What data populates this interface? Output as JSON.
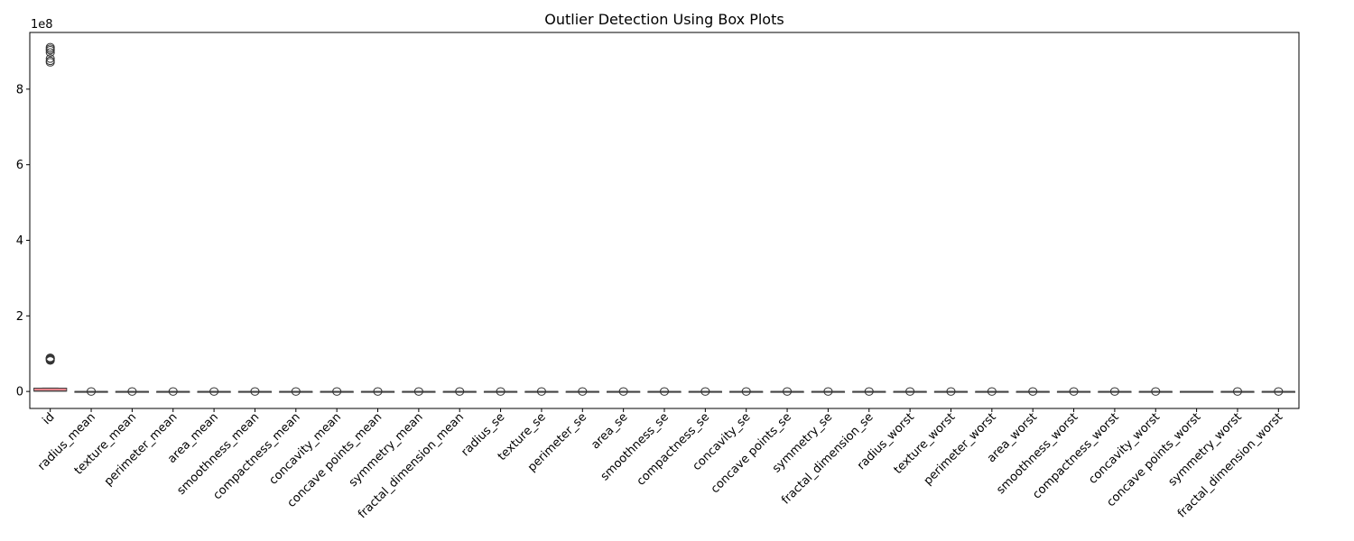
{
  "chart_data": {
    "type": "box",
    "title": "Outlier Detection Using Box Plots",
    "ylabel": "",
    "xlabel": "",
    "y_scale_multiplier": "1e8",
    "ylim": [
      -0.45,
      9.5
    ],
    "yticks": [
      0,
      2,
      4,
      6,
      8
    ],
    "grid": false,
    "box_color": "#e7848b",
    "categories": [
      "id",
      "radius_mean",
      "texture_mean",
      "perimeter_mean",
      "area_mean",
      "smoothness_mean",
      "compactness_mean",
      "concavity_mean",
      "concave points_mean",
      "symmetry_mean",
      "fractal_dimension_mean",
      "radius_se",
      "texture_se",
      "perimeter_se",
      "area_se",
      "smoothness_se",
      "compactness_se",
      "concavity_se",
      "concave points_se",
      "symmetry_se",
      "fractal_dimension_se",
      "radius_worst",
      "texture_worst",
      "perimeter_worst",
      "area_worst",
      "smoothness_worst",
      "compactness_worst",
      "concavity_worst",
      "concave points_worst",
      "symmetry_worst",
      "fractal_dimension_worst"
    ],
    "boxes": [
      {
        "name": "id",
        "q1": 0.0087,
        "median": 0.009,
        "q3": 0.088,
        "whisker_low": 0.0087,
        "whisker_high": 0.09,
        "outliers": [
          0.82,
          0.84,
          0.86,
          0.87,
          0.88,
          0.89,
          8.71,
          8.75,
          8.81,
          8.97,
          9.03,
          9.07,
          9.11
        ]
      },
      {
        "name": "radius_mean",
        "q1": 0,
        "median": 0,
        "q3": 0,
        "whisker_low": 0,
        "whisker_high": 0,
        "outliers": [
          0.0
        ]
      },
      {
        "name": "texture_mean",
        "q1": 0,
        "median": 0,
        "q3": 0,
        "whisker_low": 0,
        "whisker_high": 0,
        "outliers": [
          0.0
        ]
      },
      {
        "name": "perimeter_mean",
        "q1": 0,
        "median": 0,
        "q3": 0,
        "whisker_low": 0,
        "whisker_high": 0,
        "outliers": [
          0.0
        ]
      },
      {
        "name": "area_mean",
        "q1": 0,
        "median": 0,
        "q3": 0,
        "whisker_low": 0,
        "whisker_high": 0,
        "outliers": [
          0.0
        ]
      },
      {
        "name": "smoothness_mean",
        "q1": 0,
        "median": 0,
        "q3": 0,
        "whisker_low": 0,
        "whisker_high": 0,
        "outliers": [
          0.0
        ]
      },
      {
        "name": "compactness_mean",
        "q1": 0,
        "median": 0,
        "q3": 0,
        "whisker_low": 0,
        "whisker_high": 0,
        "outliers": [
          0.0
        ]
      },
      {
        "name": "concavity_mean",
        "q1": 0,
        "median": 0,
        "q3": 0,
        "whisker_low": 0,
        "whisker_high": 0,
        "outliers": [
          0.0
        ]
      },
      {
        "name": "concave points_mean",
        "q1": 0,
        "median": 0,
        "q3": 0,
        "whisker_low": 0,
        "whisker_high": 0,
        "outliers": [
          0.0
        ]
      },
      {
        "name": "symmetry_mean",
        "q1": 0,
        "median": 0,
        "q3": 0,
        "whisker_low": 0,
        "whisker_high": 0,
        "outliers": [
          0.0
        ]
      },
      {
        "name": "fractal_dimension_mean",
        "q1": 0,
        "median": 0,
        "q3": 0,
        "whisker_low": 0,
        "whisker_high": 0,
        "outliers": [
          0.0
        ]
      },
      {
        "name": "radius_se",
        "q1": 0,
        "median": 0,
        "q3": 0,
        "whisker_low": 0,
        "whisker_high": 0,
        "outliers": [
          0.0
        ]
      },
      {
        "name": "texture_se",
        "q1": 0,
        "median": 0,
        "q3": 0,
        "whisker_low": 0,
        "whisker_high": 0,
        "outliers": [
          0.0
        ]
      },
      {
        "name": "perimeter_se",
        "q1": 0,
        "median": 0,
        "q3": 0,
        "whisker_low": 0,
        "whisker_high": 0,
        "outliers": [
          0.0
        ]
      },
      {
        "name": "area_se",
        "q1": 0,
        "median": 0,
        "q3": 0,
        "whisker_low": 0,
        "whisker_high": 0,
        "outliers": [
          0.0
        ]
      },
      {
        "name": "smoothness_se",
        "q1": 0,
        "median": 0,
        "q3": 0,
        "whisker_low": 0,
        "whisker_high": 0,
        "outliers": [
          0.0
        ]
      },
      {
        "name": "compactness_se",
        "q1": 0,
        "median": 0,
        "q3": 0,
        "whisker_low": 0,
        "whisker_high": 0,
        "outliers": [
          0.0
        ]
      },
      {
        "name": "concavity_se",
        "q1": 0,
        "median": 0,
        "q3": 0,
        "whisker_low": 0,
        "whisker_high": 0,
        "outliers": [
          0.0
        ]
      },
      {
        "name": "concave points_se",
        "q1": 0,
        "median": 0,
        "q3": 0,
        "whisker_low": 0,
        "whisker_high": 0,
        "outliers": [
          0.0
        ]
      },
      {
        "name": "symmetry_se",
        "q1": 0,
        "median": 0,
        "q3": 0,
        "whisker_low": 0,
        "whisker_high": 0,
        "outliers": [
          0.0
        ]
      },
      {
        "name": "fractal_dimension_se",
        "q1": 0,
        "median": 0,
        "q3": 0,
        "whisker_low": 0,
        "whisker_high": 0,
        "outliers": [
          0.0
        ]
      },
      {
        "name": "radius_worst",
        "q1": 0,
        "median": 0,
        "q3": 0,
        "whisker_low": 0,
        "whisker_high": 0,
        "outliers": [
          0.0
        ]
      },
      {
        "name": "texture_worst",
        "q1": 0,
        "median": 0,
        "q3": 0,
        "whisker_low": 0,
        "whisker_high": 0,
        "outliers": [
          0.0
        ]
      },
      {
        "name": "perimeter_worst",
        "q1": 0,
        "median": 0,
        "q3": 0,
        "whisker_low": 0,
        "whisker_high": 0,
        "outliers": [
          0.0
        ]
      },
      {
        "name": "area_worst",
        "q1": 0,
        "median": 0,
        "q3": 0,
        "whisker_low": 0,
        "whisker_high": 0,
        "outliers": [
          0.0
        ]
      },
      {
        "name": "smoothness_worst",
        "q1": 0,
        "median": 0,
        "q3": 0,
        "whisker_low": 0,
        "whisker_high": 0,
        "outliers": [
          0.0
        ]
      },
      {
        "name": "compactness_worst",
        "q1": 0,
        "median": 0,
        "q3": 0,
        "whisker_low": 0,
        "whisker_high": 0,
        "outliers": [
          0.0
        ]
      },
      {
        "name": "concavity_worst",
        "q1": 0,
        "median": 0,
        "q3": 0,
        "whisker_low": 0,
        "whisker_high": 0,
        "outliers": [
          0.0
        ]
      },
      {
        "name": "concave points_worst",
        "q1": 0,
        "median": 0,
        "q3": 0,
        "whisker_low": 0,
        "whisker_high": 0,
        "outliers": []
      },
      {
        "name": "symmetry_worst",
        "q1": 0,
        "median": 0,
        "q3": 0,
        "whisker_low": 0,
        "whisker_high": 0,
        "outliers": [
          0.0
        ]
      },
      {
        "name": "fractal_dimension_worst",
        "q1": 0,
        "median": 0,
        "q3": 0,
        "whisker_low": 0,
        "whisker_high": 0,
        "outliers": [
          0.0
        ]
      }
    ]
  }
}
